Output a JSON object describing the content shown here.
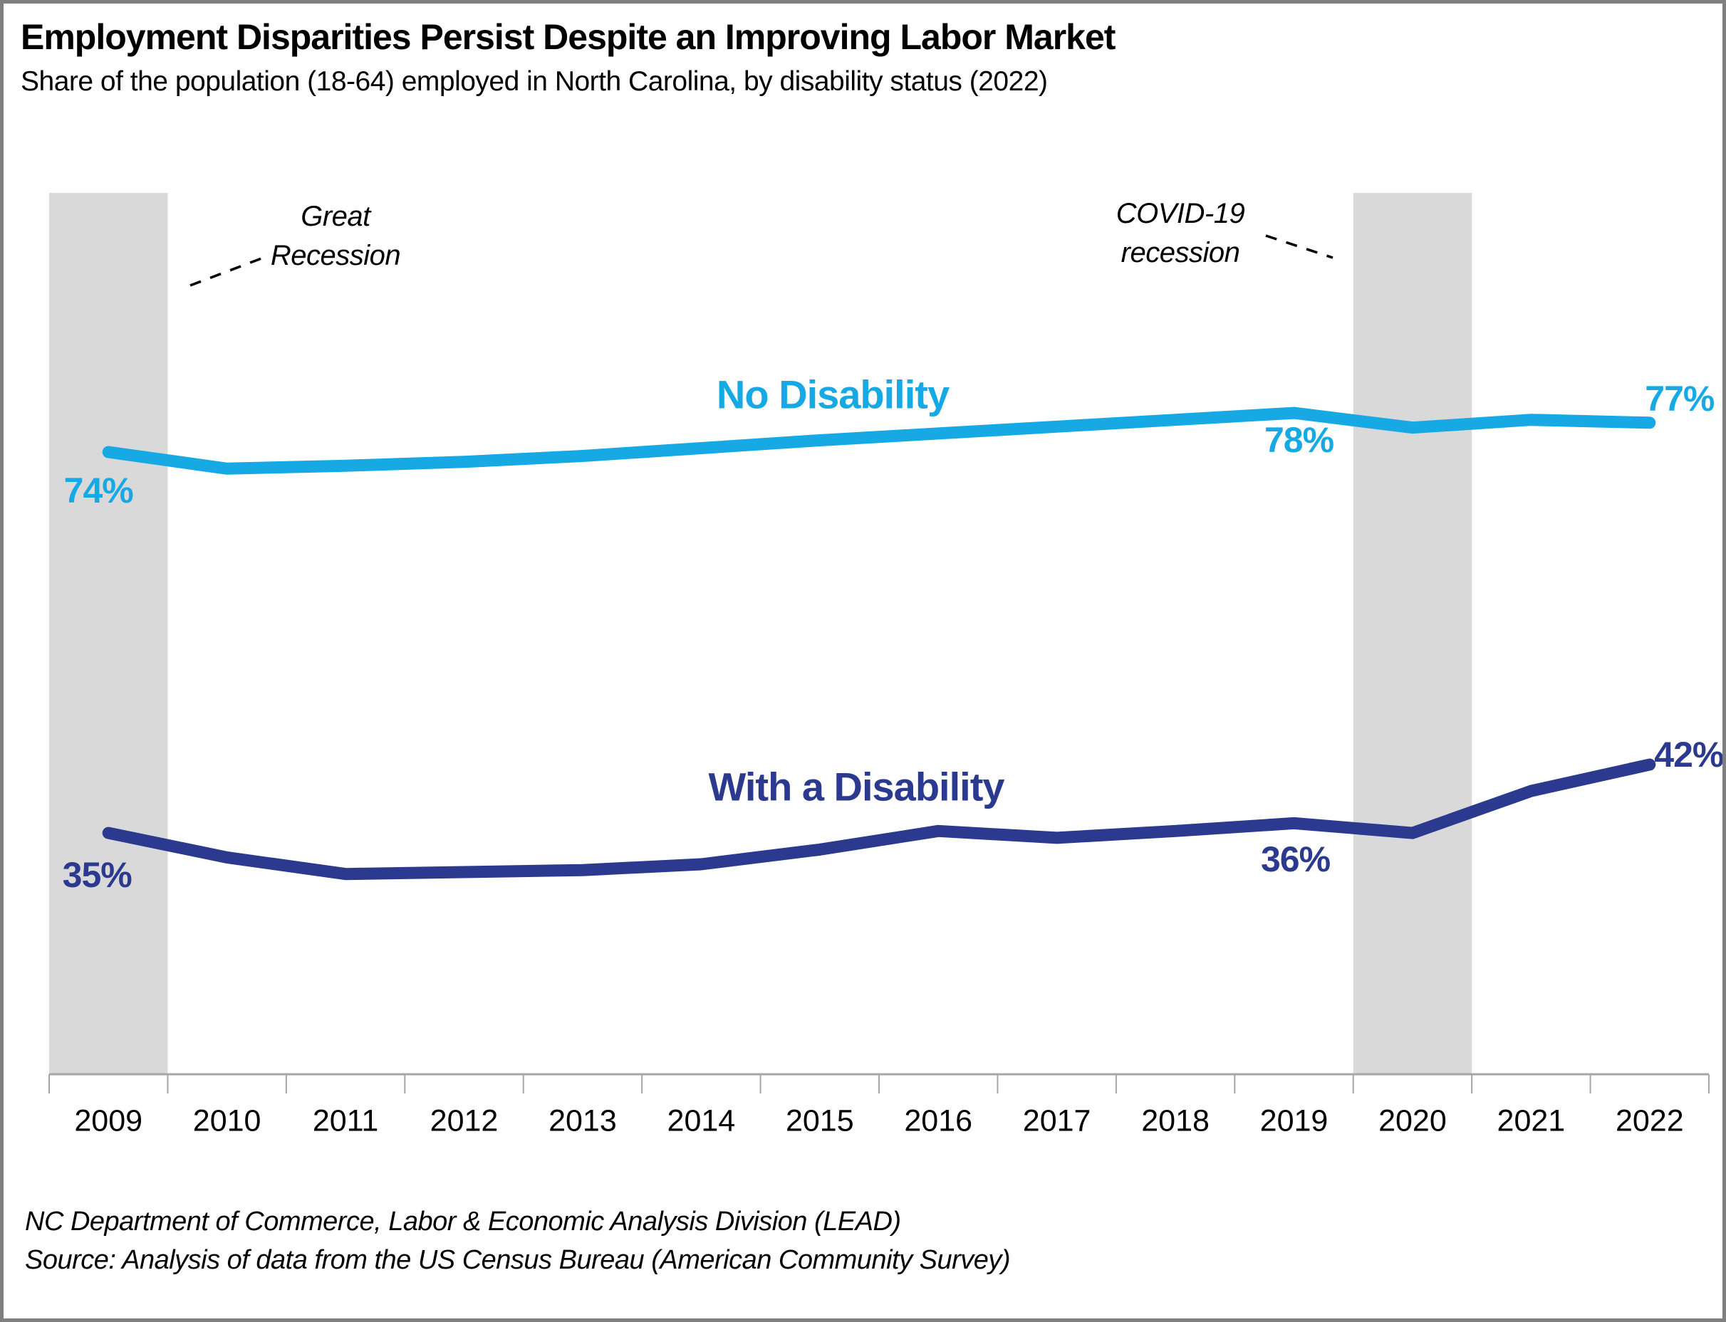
{
  "header": {
    "title": "Employment Disparities Persist Despite an Improving Labor Market",
    "subtitle": "Share of the population (18-64) employed in North Carolina, by disability status (2022)"
  },
  "annotations": {
    "great_recession": {
      "line1": "Great",
      "line2": "Recession"
    },
    "covid_recession": {
      "line1": "COVID-19",
      "line2": "recession"
    }
  },
  "footer": {
    "line1": "NC Department of Commerce, Labor & Economic Analysis Division (LEAD)",
    "line2": "Source: Analysis of data from the US Census Bureau (American Community Survey)"
  },
  "colors": {
    "no_disability_line": "#17A9E4",
    "with_disability_line": "#2B3A8E",
    "recession_band": "#D9D9D9",
    "axis": "#A6A6A6",
    "annotation_text": "#000000",
    "frame_border": "#7F7F7F"
  },
  "chart_data": {
    "type": "line",
    "x": [
      2009,
      2010,
      2011,
      2012,
      2013,
      2014,
      2015,
      2016,
      2017,
      2018,
      2019,
      2020,
      2021,
      2022
    ],
    "x_tick_labels": [
      "2009",
      "2010",
      "2011",
      "2012",
      "2013",
      "2014",
      "2015",
      "2016",
      "2017",
      "2018",
      "2019",
      "2020",
      "2021",
      "2022"
    ],
    "series": [
      {
        "name": "No Disability",
        "color": "#17A9E4",
        "values": [
          74,
          72.3,
          72.6,
          73.0,
          73.6,
          74.4,
          75.2,
          75.9,
          76.6,
          77.3,
          78,
          76.5,
          77.3,
          77
        ],
        "callouts": [
          {
            "year": 2009,
            "label": "74%"
          },
          {
            "year": 2019,
            "label": "78%"
          },
          {
            "year": 2022,
            "label": "77%"
          }
        ]
      },
      {
        "name": "With a Disability",
        "color": "#2B3A8E",
        "values": [
          35,
          32.5,
          30.8,
          31.0,
          31.2,
          31.8,
          33.3,
          35.2,
          34.5,
          35.2,
          36,
          35,
          39.3,
          42
        ],
        "callouts": [
          {
            "year": 2009,
            "label": "35%"
          },
          {
            "year": 2019,
            "label": "36%"
          },
          {
            "year": 2022,
            "label": "42%"
          }
        ]
      }
    ],
    "recession_bands": [
      {
        "name": "Great Recession",
        "from": 2008.5,
        "to": 2009.5
      },
      {
        "name": "COVID-19 recession",
        "from": 2019.5,
        "to": 2020.5
      }
    ],
    "y_axis": {
      "visible": false,
      "unit": "%"
    },
    "grid": false,
    "legend": "inline-labels"
  }
}
